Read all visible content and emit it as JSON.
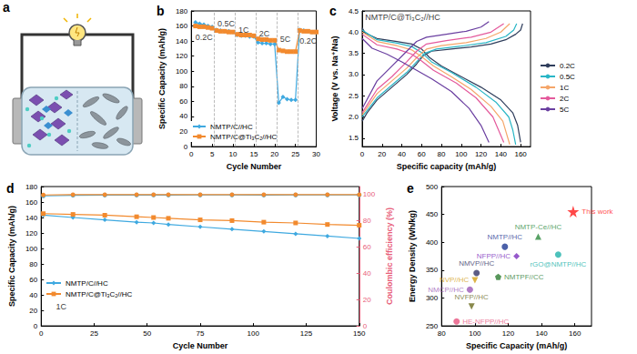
{
  "schematic": {
    "title": "a"
  },
  "chart_data": [
    {
      "title": "b",
      "type": "line",
      "xlabel": "Cycle Number",
      "ylabel": "Specific Capacity (mAh/g)",
      "x": [
        1,
        2,
        3,
        4,
        5,
        6,
        7,
        8,
        9,
        10,
        11,
        12,
        13,
        14,
        15,
        16,
        17,
        18,
        19,
        20,
        21,
        22,
        23,
        24,
        25,
        26,
        27,
        28,
        29,
        30
      ],
      "xlim": [
        0,
        30
      ],
      "xticks": [
        0,
        5,
        10,
        15,
        20,
        25,
        30
      ],
      "ylim": [
        0,
        180
      ],
      "yticks": [
        0,
        20,
        40,
        60,
        80,
        100,
        120,
        140,
        160,
        180
      ],
      "grid": false,
      "legend": "lower left",
      "series": [
        {
          "name": "NMTP/C//HC",
          "color": "#3fa9e0",
          "marker": "diamond",
          "values": [
            165,
            163,
            162,
            160,
            159,
            155,
            154,
            153,
            153,
            152,
            148,
            147,
            147,
            146,
            146,
            138,
            137,
            137,
            136,
            136,
            58,
            66,
            63,
            62,
            62,
            155,
            154,
            153,
            152,
            152
          ]
        },
        {
          "name": "NMTP/C@Ti₃C₂//HC",
          "color": "#f28a2e",
          "marker": "square",
          "values": [
            160,
            159,
            159,
            158,
            157,
            154,
            153,
            153,
            152,
            152,
            149,
            148,
            148,
            148,
            147,
            143,
            142,
            142,
            141,
            141,
            128,
            127,
            126,
            126,
            126,
            154,
            153,
            153,
            152,
            152
          ]
        }
      ],
      "annotations": [
        {
          "text": "0.2C",
          "x": 1,
          "y": 145
        },
        {
          "text": "0.5C",
          "x": 6.3,
          "y": 163
        },
        {
          "text": "1C",
          "x": 11.3,
          "y": 155
        },
        {
          "text": "2C",
          "x": 16.3,
          "y": 150
        },
        {
          "text": "5C",
          "x": 21.3,
          "y": 143
        },
        {
          "text": "0.2C",
          "x": 26,
          "y": 140
        }
      ],
      "dividers": [
        5.5,
        10.5,
        15.5,
        20.5,
        25.5
      ]
    },
    {
      "title": "c",
      "type": "line",
      "xlabel": "Specific capacity (mAh/g)",
      "ylabel": "Voltage (V vs. Na⁺/Na)",
      "xlim": [
        0,
        170
      ],
      "xticks": [
        0,
        20,
        40,
        60,
        80,
        100,
        120,
        140,
        160
      ],
      "ylim": [
        1.3,
        4.5
      ],
      "yticks": [
        1.5,
        {
          "value": 2,
          "label": "2.0"
        },
        2.5,
        {
          "value": 3,
          "label": "3.0"
        },
        3.5,
        {
          "value": 4,
          "label": "4.0"
        },
        4.5
      ],
      "grid": false,
      "legend": "right",
      "series": [
        {
          "name": "0.2C",
          "color": "#2f3e5c",
          "charge": [
            [
              0,
              1.9
            ],
            [
              5,
              2.1
            ],
            [
              15,
              2.4
            ],
            [
              30,
              2.7
            ],
            [
              45,
              3.0
            ],
            [
              55,
              3.25
            ],
            [
              62,
              3.45
            ],
            [
              70,
              3.55
            ],
            [
              90,
              3.6
            ],
            [
              110,
              3.65
            ],
            [
              130,
              3.72
            ],
            [
              145,
              3.82
            ],
            [
              155,
              3.95
            ],
            [
              160,
              4.05
            ],
            [
              162,
              4.2
            ]
          ],
          "discharge": [
            [
              0,
              4.1
            ],
            [
              3,
              3.98
            ],
            [
              15,
              3.85
            ],
            [
              35,
              3.78
            ],
            [
              50,
              3.72
            ],
            [
              60,
              3.6
            ],
            [
              68,
              3.4
            ],
            [
              80,
              3.2
            ],
            [
              100,
              2.95
            ],
            [
              120,
              2.7
            ],
            [
              140,
              2.4
            ],
            [
              152,
              2.1
            ],
            [
              157,
              1.8
            ],
            [
              160,
              1.4
            ]
          ]
        },
        {
          "name": "0.5C",
          "color": "#29b6c6",
          "charge": [
            [
              0,
              2.0
            ],
            [
              15,
              2.45
            ],
            [
              30,
              2.75
            ],
            [
              45,
              3.05
            ],
            [
              55,
              3.3
            ],
            [
              63,
              3.5
            ],
            [
              75,
              3.6
            ],
            [
              100,
              3.67
            ],
            [
              125,
              3.75
            ],
            [
              145,
              3.9
            ],
            [
              153,
              4.05
            ],
            [
              156,
              4.2
            ]
          ],
          "discharge": [
            [
              0,
              4.05
            ],
            [
              15,
              3.82
            ],
            [
              35,
              3.74
            ],
            [
              50,
              3.66
            ],
            [
              60,
              3.52
            ],
            [
              70,
              3.3
            ],
            [
              90,
              3.05
            ],
            [
              115,
              2.7
            ],
            [
              135,
              2.35
            ],
            [
              148,
              2.0
            ],
            [
              152,
              1.7
            ],
            [
              155,
              1.35
            ]
          ]
        },
        {
          "name": "1C",
          "color": "#f5a66a",
          "charge": [
            [
              0,
              2.05
            ],
            [
              15,
              2.55
            ],
            [
              30,
              2.85
            ],
            [
              45,
              3.15
            ],
            [
              55,
              3.4
            ],
            [
              65,
              3.6
            ],
            [
              80,
              3.68
            ],
            [
              105,
              3.75
            ],
            [
              125,
              3.85
            ],
            [
              140,
              4.0
            ],
            [
              149,
              4.2
            ]
          ],
          "discharge": [
            [
              0,
              4.0
            ],
            [
              15,
              3.78
            ],
            [
              35,
              3.68
            ],
            [
              50,
              3.58
            ],
            [
              60,
              3.42
            ],
            [
              72,
              3.2
            ],
            [
              90,
              2.95
            ],
            [
              110,
              2.65
            ],
            [
              130,
              2.25
            ],
            [
              142,
              1.9
            ],
            [
              149,
              1.35
            ]
          ]
        },
        {
          "name": "2C",
          "color": "#e45a9c",
          "charge": [
            [
              0,
              2.1
            ],
            [
              15,
              2.65
            ],
            [
              30,
              2.95
            ],
            [
              45,
              3.3
            ],
            [
              55,
              3.55
            ],
            [
              65,
              3.72
            ],
            [
              85,
              3.8
            ],
            [
              110,
              3.88
            ],
            [
              130,
              4.0
            ],
            [
              143,
              4.2
            ]
          ],
          "discharge": [
            [
              0,
              3.95
            ],
            [
              15,
              3.7
            ],
            [
              35,
              3.6
            ],
            [
              50,
              3.48
            ],
            [
              60,
              3.32
            ],
            [
              72,
              3.1
            ],
            [
              95,
              2.8
            ],
            [
              115,
              2.45
            ],
            [
              132,
              2.0
            ],
            [
              143,
              1.4
            ]
          ]
        },
        {
          "name": "5C",
          "color": "#6a3fa0",
          "charge": [
            [
              0,
              2.2
            ],
            [
              15,
              2.85
            ],
            [
              30,
              3.2
            ],
            [
              45,
              3.55
            ],
            [
              55,
              3.78
            ],
            [
              65,
              3.88
            ],
            [
              85,
              3.95
            ],
            [
              105,
              4.02
            ],
            [
              120,
              4.12
            ],
            [
              128,
              4.25
            ]
          ],
          "discharge": [
            [
              0,
              3.85
            ],
            [
              10,
              3.62
            ],
            [
              25,
              3.48
            ],
            [
              40,
              3.3
            ],
            [
              55,
              3.1
            ],
            [
              70,
              2.9
            ],
            [
              90,
              2.6
            ],
            [
              108,
              2.2
            ],
            [
              120,
              1.8
            ],
            [
              128,
              1.4
            ]
          ]
        }
      ],
      "annotations": [
        {
          "text": "NMTP/C@Ti₃C₂//HC",
          "x": 3,
          "y": 4.35
        }
      ]
    },
    {
      "title": "d",
      "type": "line",
      "xlabel": "Cycle Number",
      "ylabel": "Specific Capacity (mAh/g)",
      "y2label": "Coulombic efficiency (%)",
      "x": [
        1,
        15,
        30,
        45,
        53,
        60,
        75,
        90,
        105,
        120,
        135,
        150
      ],
      "xlim": [
        0,
        150
      ],
      "xticks": [
        0,
        25,
        50,
        75,
        100,
        125,
        150
      ],
      "ylim": [
        0,
        180
      ],
      "yticks": [
        0,
        20,
        40,
        60,
        80,
        100,
        120,
        140,
        160,
        180
      ],
      "y2lim": [
        0,
        106
      ],
      "y2ticks": [
        0,
        20,
        40,
        60,
        80,
        100
      ],
      "grid": false,
      "legend": "lower left",
      "series": [
        {
          "name": "NMTP/C//HC",
          "color": "#3fa9e0",
          "marker": "diamond",
          "values": [
            143,
            140,
            137,
            134,
            133,
            131,
            128,
            125,
            122,
            119,
            116,
            113
          ]
        },
        {
          "name": "NMTP/C@Ti₃C₂//HC",
          "color": "#f28a2e",
          "marker": "square",
          "values": [
            145,
            144,
            143,
            141,
            140,
            139,
            137,
            136,
            134,
            133,
            131,
            130
          ]
        },
        {
          "name": "NMTP/C//HC",
          "color": "#3fa9e0",
          "marker": "circle",
          "axis": "y2",
          "values": [
            98.9,
            99.4,
            99.5,
            99.5,
            99.6,
            99.5,
            99.6,
            99.6,
            99.5,
            99.6,
            99.6,
            99.6
          ]
        },
        {
          "name": "NMTP/C@Ti₃C₂//HC",
          "color": "#f28a2e",
          "marker": "circle",
          "axis": "y2",
          "values": [
            99.6,
            99.8,
            99.8,
            99.8,
            99.8,
            99.8,
            99.8,
            99.8,
            99.8,
            99.8,
            99.8,
            99.8
          ]
        }
      ],
      "annotations": [
        {
          "text": "1C",
          "x": 7,
          "y": 25
        }
      ]
    },
    {
      "title": "e",
      "type": "scatter",
      "xlabel": "Specific Capacity (mAh/g)",
      "ylabel": "Energy Density (Wh/kg)",
      "xlim": [
        80,
        170
      ],
      "xticks": [
        80,
        100,
        120,
        140,
        160
      ],
      "ylim": [
        250,
        500
      ],
      "yticks": [
        250,
        300,
        350,
        400,
        450,
        500
      ],
      "grid": false,
      "data_labels": true,
      "points": [
        {
          "label": "This work",
          "x": 159,
          "y": 455,
          "color": "#ff1a1a",
          "marker": "star"
        },
        {
          "label": "NMTP-Ce//HC",
          "x": 138,
          "y": 410,
          "color": "#2e8b3e",
          "marker": "triangle"
        },
        {
          "label": "NMTP//HC",
          "x": 118,
          "y": 392,
          "color": "#1f3a93",
          "marker": "circle"
        },
        {
          "label": "NFPP//HC",
          "x": 125,
          "y": 375,
          "color": "#7b2fbe",
          "marker": "diamond"
        },
        {
          "label": "rGO@NMTP//HC",
          "x": 150,
          "y": 378,
          "color": "#20b2aa",
          "marker": "circle"
        },
        {
          "label": "NMVP//HC",
          "x": 101,
          "y": 345,
          "color": "#333366",
          "marker": "circle"
        },
        {
          "label": "NMCP//HC",
          "x": 97,
          "y": 315,
          "color": "#9b59b6",
          "marker": "circle"
        },
        {
          "label": "NVP//HC",
          "x": 100,
          "y": 332,
          "color": "#d4a017",
          "marker": "triangle-down"
        },
        {
          "label": "NMTPF//CC",
          "x": 114,
          "y": 338,
          "color": "#2e7d32",
          "marker": "pentagon"
        },
        {
          "label": "NVFP//HC",
          "x": 98,
          "y": 285,
          "color": "#6b6b1f",
          "marker": "triangle-down"
        },
        {
          "label": "HE-NFPP//HC",
          "x": 89,
          "y": 258,
          "color": "#e75480",
          "marker": "circle"
        }
      ]
    }
  ]
}
